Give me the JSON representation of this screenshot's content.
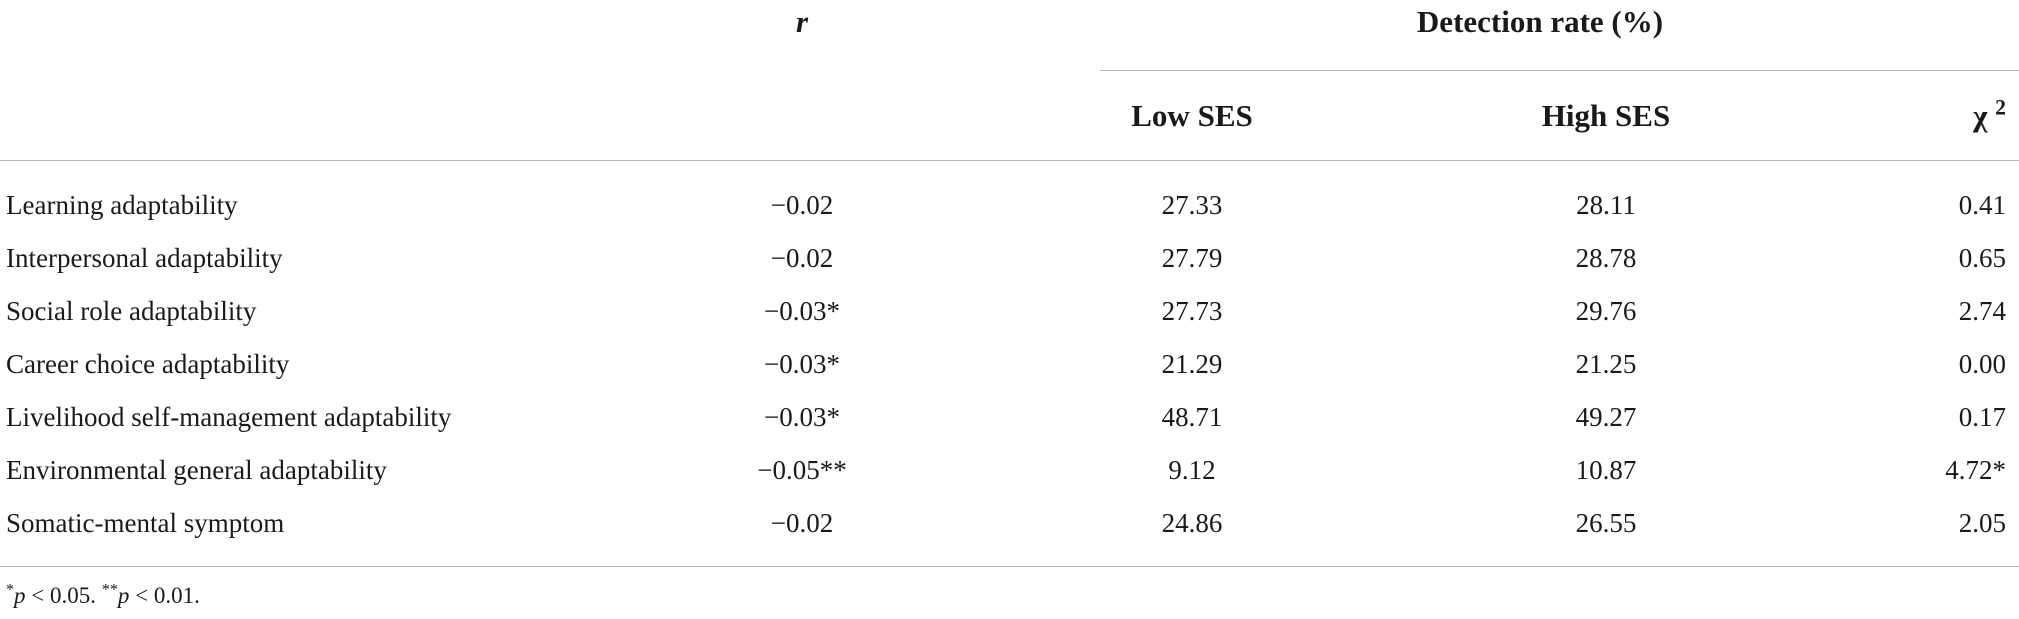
{
  "header": {
    "r_label": "r",
    "group_label": "Detection rate (%)",
    "low_ses": "Low SES",
    "high_ses": "High SES",
    "chi_label": "χ",
    "chi_sup": "2"
  },
  "rows": [
    {
      "label": "Learning adaptability",
      "r": "−0.02",
      "low": "27.33",
      "high": "28.11",
      "chi": "0.41"
    },
    {
      "label": "Interpersonal adaptability",
      "r": "−0.02",
      "low": "27.79",
      "high": "28.78",
      "chi": "0.65"
    },
    {
      "label": "Social role adaptability",
      "r": "−0.03*",
      "low": "27.73",
      "high": "29.76",
      "chi": "2.74"
    },
    {
      "label": "Career choice adaptability",
      "r": "−0.03*",
      "low": "21.29",
      "high": "21.25",
      "chi": "0.00"
    },
    {
      "label": "Livelihood self-management adaptability",
      "r": "−0.03*",
      "low": "48.71",
      "high": "49.27",
      "chi": "0.17"
    },
    {
      "label": "Environmental general adaptability",
      "r": "−0.05**",
      "low": "9.12",
      "high": "10.87",
      "chi": "4.72*"
    },
    {
      "label": "Somatic-mental symptom",
      "r": "−0.02",
      "low": "24.86",
      "high": "26.55",
      "chi": "2.05"
    }
  ],
  "footnote": {
    "star1": "*",
    "p1": "p",
    "t1": " < 0.05. ",
    "star2": "**",
    "p2": "p",
    "t2": " < 0.01."
  }
}
